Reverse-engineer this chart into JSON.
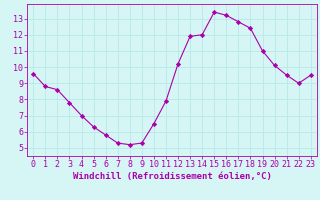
{
  "x": [
    0,
    1,
    2,
    3,
    4,
    5,
    6,
    7,
    8,
    9,
    10,
    11,
    12,
    13,
    14,
    15,
    16,
    17,
    18,
    19,
    20,
    21,
    22,
    23
  ],
  "y": [
    9.6,
    8.8,
    8.6,
    7.8,
    7.0,
    6.3,
    5.8,
    5.3,
    5.2,
    5.3,
    6.5,
    7.9,
    10.2,
    11.9,
    12.0,
    13.4,
    13.2,
    12.8,
    12.4,
    11.0,
    10.1,
    9.5,
    9.0,
    9.5
  ],
  "line_color": "#aa00aa",
  "marker": "D",
  "markersize": 2.2,
  "linewidth": 0.8,
  "xlim": [
    -0.5,
    23.5
  ],
  "ylim": [
    4.5,
    13.9
  ],
  "yticks": [
    5,
    6,
    7,
    8,
    9,
    10,
    11,
    12,
    13
  ],
  "xticks": [
    0,
    1,
    2,
    3,
    4,
    5,
    6,
    7,
    8,
    9,
    10,
    11,
    12,
    13,
    14,
    15,
    16,
    17,
    18,
    19,
    20,
    21,
    22,
    23
  ],
  "xlabel": "Windchill (Refroidissement éolien,°C)",
  "bg_color": "#d6f5f5",
  "grid_color": "#b8e8e8",
  "tick_color": "#aa00aa",
  "label_color": "#aa00aa",
  "spine_color": "#aa00aa",
  "xlabel_fontsize": 6.5,
  "tick_fontsize": 6.0,
  "tick_label_font": "monospace"
}
